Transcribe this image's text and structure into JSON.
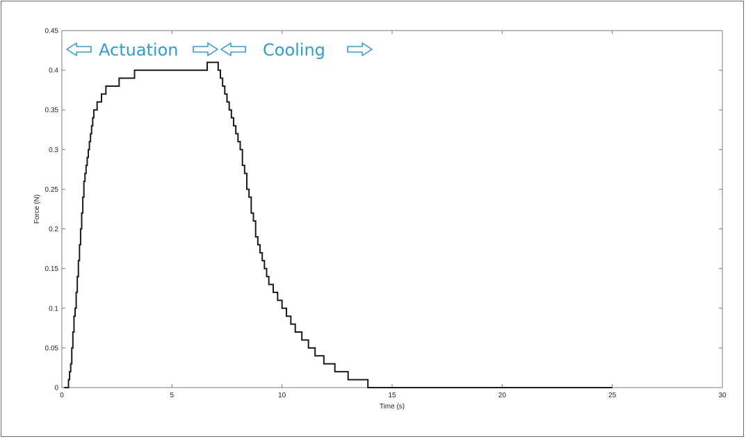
{
  "chart_data": {
    "type": "line",
    "xlabel": "Time (s)",
    "ylabel": "Force (N)",
    "xlim": [
      0,
      30
    ],
    "ylim": [
      0,
      0.45
    ],
    "xticks": [
      0,
      5,
      10,
      15,
      20,
      25,
      30
    ],
    "yticks": [
      0,
      0.05,
      0.1,
      0.15,
      0.2,
      0.25,
      0.3,
      0.35,
      0.4,
      0.45
    ],
    "ytick_labels": [
      "0",
      "0.05",
      "0.1",
      "0.15",
      "0.2",
      "0.25",
      "0.3",
      "0.35",
      "0.4",
      "0.45"
    ],
    "grid": false,
    "step": true,
    "series": [
      {
        "color": "#1a1a1a",
        "x": [
          0.1,
          0.3,
          0.35,
          0.4,
          0.45,
          0.5,
          0.55,
          0.6,
          0.65,
          0.7,
          0.75,
          0.8,
          0.85,
          0.9,
          0.95,
          1.0,
          1.05,
          1.1,
          1.15,
          1.2,
          1.25,
          1.3,
          1.35,
          1.4,
          1.45,
          1.5,
          1.6,
          1.7,
          1.8,
          1.9,
          2.0,
          2.2,
          2.4,
          2.6,
          2.9,
          3.3,
          6.6,
          7.1,
          7.2,
          7.3,
          7.4,
          7.5,
          7.6,
          7.7,
          7.8,
          7.9,
          8.0,
          8.1,
          8.2,
          8.3,
          8.4,
          8.5,
          8.6,
          8.7,
          8.8,
          8.9,
          9.0,
          9.1,
          9.2,
          9.3,
          9.4,
          9.6,
          9.8,
          10.0,
          10.2,
          10.4,
          10.6,
          10.9,
          11.2,
          11.5,
          11.9,
          12.4,
          13.0,
          13.9,
          25.0
        ],
        "y": [
          0,
          0.01,
          0.02,
          0.03,
          0.05,
          0.07,
          0.09,
          0.1,
          0.12,
          0.14,
          0.16,
          0.18,
          0.2,
          0.22,
          0.24,
          0.26,
          0.27,
          0.28,
          0.29,
          0.3,
          0.31,
          0.32,
          0.33,
          0.34,
          0.35,
          0.35,
          0.36,
          0.36,
          0.37,
          0.37,
          0.38,
          0.38,
          0.38,
          0.39,
          0.39,
          0.4,
          0.41,
          0.4,
          0.39,
          0.38,
          0.37,
          0.36,
          0.35,
          0.34,
          0.33,
          0.32,
          0.31,
          0.3,
          0.28,
          0.27,
          0.25,
          0.24,
          0.22,
          0.21,
          0.19,
          0.18,
          0.17,
          0.16,
          0.15,
          0.14,
          0.13,
          0.12,
          0.11,
          0.1,
          0.09,
          0.08,
          0.07,
          0.06,
          0.05,
          0.04,
          0.03,
          0.02,
          0.01,
          0,
          0
        ]
      }
    ],
    "annotations": [
      {
        "text": "Actuation",
        "color": "#2f9fc8"
      },
      {
        "text": "Cooling",
        "color": "#2f9fc8"
      }
    ]
  }
}
